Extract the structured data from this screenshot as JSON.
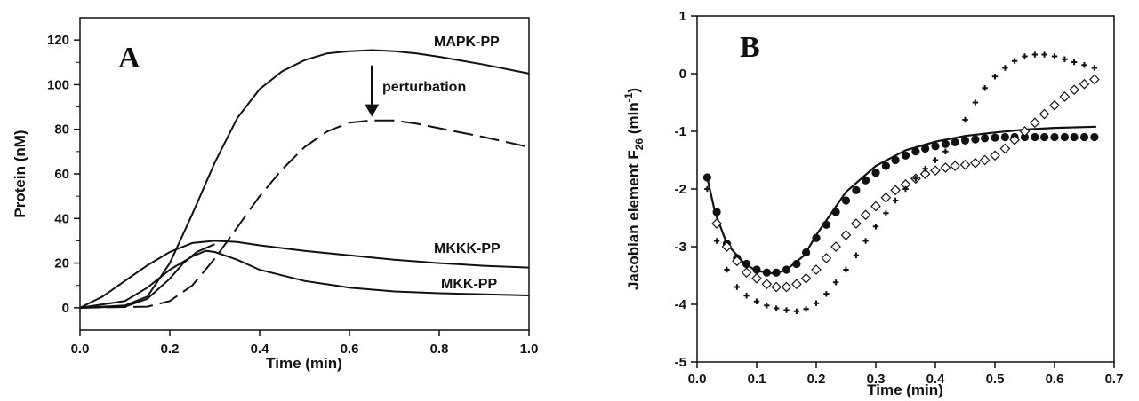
{
  "chart_data": [
    {
      "type": "line",
      "panel_label": "A",
      "xlabel": "Time (min)",
      "ylabel": "Protein (nM)",
      "xlim": [
        0.0,
        1.0
      ],
      "ylim": [
        -10,
        130
      ],
      "x_ticks": [
        "0.0",
        "0.2",
        "0.4",
        "0.6",
        "0.8",
        "1.0"
      ],
      "y_ticks": [
        "0",
        "20",
        "40",
        "60",
        "80",
        "100",
        "120"
      ],
      "series": [
        {
          "name": "MAPK-PP",
          "style": "solid",
          "points": [
            [
              0,
              0
            ],
            [
              0.1,
              1
            ],
            [
              0.15,
              5
            ],
            [
              0.2,
              20
            ],
            [
              0.25,
              42
            ],
            [
              0.3,
              65
            ],
            [
              0.35,
              85
            ],
            [
              0.4,
              98
            ],
            [
              0.45,
              106
            ],
            [
              0.5,
              111
            ],
            [
              0.55,
              114
            ],
            [
              0.6,
              115
            ],
            [
              0.65,
              115.5
            ],
            [
              0.7,
              115
            ],
            [
              0.75,
              114
            ],
            [
              0.8,
              112.5
            ],
            [
              0.9,
              109
            ],
            [
              1.0,
              105
            ]
          ]
        },
        {
          "name": "",
          "style": "dashed",
          "points": [
            [
              0,
              0
            ],
            [
              0.15,
              0.5
            ],
            [
              0.2,
              3
            ],
            [
              0.25,
              10
            ],
            [
              0.3,
              22
            ],
            [
              0.35,
              36
            ],
            [
              0.4,
              50
            ],
            [
              0.45,
              62
            ],
            [
              0.5,
              72
            ],
            [
              0.55,
              79
            ],
            [
              0.6,
              83
            ],
            [
              0.65,
              84
            ],
            [
              0.7,
              84
            ],
            [
              0.75,
              82.5
            ],
            [
              0.8,
              80.5
            ],
            [
              0.9,
              76.5
            ],
            [
              1.0,
              72
            ]
          ]
        },
        {
          "name": "MKKK-PP",
          "style": "solid",
          "points": [
            [
              0,
              0
            ],
            [
              0.05,
              5
            ],
            [
              0.1,
              12
            ],
            [
              0.15,
              19
            ],
            [
              0.2,
              25
            ],
            [
              0.25,
              29
            ],
            [
              0.3,
              30
            ],
            [
              0.35,
              29.5
            ],
            [
              0.4,
              28
            ],
            [
              0.5,
              25.5
            ],
            [
              0.6,
              23.5
            ],
            [
              0.7,
              21.5
            ],
            [
              0.8,
              20
            ],
            [
              0.9,
              18.8
            ],
            [
              1.0,
              18
            ]
          ]
        },
        {
          "name": "MKK-PP",
          "style": "solid",
          "points": [
            [
              0,
              0
            ],
            [
              0.1,
              3
            ],
            [
              0.15,
              9
            ],
            [
              0.2,
              17
            ],
            [
              0.25,
              23
            ],
            [
              0.28,
              25.5
            ],
            [
              0.3,
              25
            ],
            [
              0.35,
              21.5
            ],
            [
              0.4,
              17
            ],
            [
              0.5,
              12
            ],
            [
              0.6,
              9
            ],
            [
              0.7,
              7.3
            ],
            [
              0.8,
              6.5
            ],
            [
              0.9,
              6
            ],
            [
              1.0,
              5.5
            ]
          ]
        },
        {
          "name": "",
          "style": "solid",
          "points": [
            [
              0,
              0
            ],
            [
              0.1,
              0.5
            ],
            [
              0.15,
              4
            ],
            [
              0.2,
              13
            ],
            [
              0.23,
              20
            ],
            [
              0.26,
              25
            ],
            [
              0.3,
              28.5
            ]
          ]
        }
      ],
      "annotations": [
        {
          "text": "perturbation",
          "arrow_from": [
            0.65,
            115
          ],
          "arrow_to": [
            0.65,
            84
          ]
        }
      ]
    },
    {
      "type": "scatter",
      "panel_label": "B",
      "xlabel": "Time (min)",
      "ylabel": "Jacobian element F",
      "ylabel_subscript": "26",
      "ylabel_unit": " (min",
      "ylabel_unit_sup": "-1",
      "ylabel_close": ")",
      "xlim": [
        0.0,
        0.7
      ],
      "ylim": [
        -5,
        1
      ],
      "x_ticks": [
        "0.0",
        "0.1",
        "0.2",
        "0.3",
        "0.4",
        "0.5",
        "0.6",
        "0.7"
      ],
      "y_ticks": [
        "-5",
        "-4",
        "-3",
        "-2",
        "-1",
        "0",
        "1"
      ],
      "series": [
        {
          "marker": "line",
          "style": "solid",
          "points": [
            [
              0.017,
              -1.8
            ],
            [
              0.03,
              -2.4
            ],
            [
              0.05,
              -2.95
            ],
            [
              0.08,
              -3.3
            ],
            [
              0.1,
              -3.42
            ],
            [
              0.13,
              -3.47
            ],
            [
              0.15,
              -3.4
            ],
            [
              0.18,
              -3.15
            ],
            [
              0.2,
              -2.8
            ],
            [
              0.25,
              -2.05
            ],
            [
              0.3,
              -1.6
            ],
            [
              0.35,
              -1.33
            ],
            [
              0.4,
              -1.18
            ],
            [
              0.45,
              -1.08
            ],
            [
              0.5,
              -1.02
            ],
            [
              0.55,
              -0.97
            ],
            [
              0.6,
              -0.94
            ],
            [
              0.67,
              -0.92
            ]
          ]
        },
        {
          "marker": "filled-circle",
          "points": [
            [
              0.017,
              -1.8
            ],
            [
              0.033,
              -2.4
            ],
            [
              0.05,
              -2.95
            ],
            [
              0.067,
              -3.2
            ],
            [
              0.083,
              -3.3
            ],
            [
              0.1,
              -3.4
            ],
            [
              0.117,
              -3.45
            ],
            [
              0.133,
              -3.45
            ],
            [
              0.15,
              -3.4
            ],
            [
              0.167,
              -3.3
            ],
            [
              0.183,
              -3.1
            ],
            [
              0.2,
              -2.85
            ],
            [
              0.217,
              -2.62
            ],
            [
              0.233,
              -2.4
            ],
            [
              0.25,
              -2.2
            ],
            [
              0.267,
              -2.02
            ],
            [
              0.283,
              -1.85
            ],
            [
              0.3,
              -1.72
            ],
            [
              0.317,
              -1.6
            ],
            [
              0.333,
              -1.5
            ],
            [
              0.35,
              -1.42
            ],
            [
              0.367,
              -1.35
            ],
            [
              0.383,
              -1.3
            ],
            [
              0.4,
              -1.26
            ],
            [
              0.417,
              -1.22
            ],
            [
              0.433,
              -1.19
            ],
            [
              0.45,
              -1.16
            ],
            [
              0.467,
              -1.14
            ],
            [
              0.483,
              -1.12
            ],
            [
              0.5,
              -1.11
            ],
            [
              0.517,
              -1.1
            ],
            [
              0.533,
              -1.1
            ],
            [
              0.55,
              -1.1
            ],
            [
              0.567,
              -1.1
            ],
            [
              0.583,
              -1.1
            ],
            [
              0.6,
              -1.1
            ],
            [
              0.617,
              -1.1
            ],
            [
              0.633,
              -1.1
            ],
            [
              0.65,
              -1.1
            ],
            [
              0.667,
              -1.1
            ]
          ]
        },
        {
          "marker": "open-diamond",
          "points": [
            [
              0.033,
              -2.6
            ],
            [
              0.05,
              -3.0
            ],
            [
              0.067,
              -3.25
            ],
            [
              0.083,
              -3.45
            ],
            [
              0.1,
              -3.55
            ],
            [
              0.117,
              -3.65
            ],
            [
              0.133,
              -3.7
            ],
            [
              0.15,
              -3.7
            ],
            [
              0.167,
              -3.65
            ],
            [
              0.183,
              -3.55
            ],
            [
              0.2,
              -3.4
            ],
            [
              0.217,
              -3.2
            ],
            [
              0.233,
              -3.0
            ],
            [
              0.25,
              -2.8
            ],
            [
              0.267,
              -2.6
            ],
            [
              0.283,
              -2.45
            ],
            [
              0.3,
              -2.3
            ],
            [
              0.317,
              -2.15
            ],
            [
              0.333,
              -2.02
            ],
            [
              0.35,
              -1.92
            ],
            [
              0.367,
              -1.82
            ],
            [
              0.383,
              -1.74
            ],
            [
              0.4,
              -1.68
            ],
            [
              0.417,
              -1.63
            ],
            [
              0.433,
              -1.6
            ],
            [
              0.45,
              -1.58
            ],
            [
              0.467,
              -1.55
            ],
            [
              0.483,
              -1.5
            ],
            [
              0.5,
              -1.42
            ],
            [
              0.517,
              -1.3
            ],
            [
              0.533,
              -1.15
            ],
            [
              0.55,
              -1.0
            ],
            [
              0.567,
              -0.85
            ],
            [
              0.583,
              -0.7
            ],
            [
              0.6,
              -0.55
            ],
            [
              0.617,
              -0.4
            ],
            [
              0.633,
              -0.28
            ],
            [
              0.65,
              -0.18
            ],
            [
              0.667,
              -0.1
            ]
          ]
        },
        {
          "marker": "plus",
          "points": [
            [
              0.017,
              -2.0
            ],
            [
              0.033,
              -2.9
            ],
            [
              0.05,
              -3.4
            ],
            [
              0.067,
              -3.7
            ],
            [
              0.083,
              -3.85
            ],
            [
              0.1,
              -3.95
            ],
            [
              0.117,
              -4.02
            ],
            [
              0.133,
              -4.07
            ],
            [
              0.15,
              -4.1
            ],
            [
              0.167,
              -4.12
            ],
            [
              0.183,
              -4.08
            ],
            [
              0.2,
              -3.98
            ],
            [
              0.217,
              -3.82
            ],
            [
              0.233,
              -3.62
            ],
            [
              0.25,
              -3.4
            ],
            [
              0.267,
              -3.15
            ],
            [
              0.283,
              -2.9
            ],
            [
              0.3,
              -2.65
            ],
            [
              0.317,
              -2.42
            ],
            [
              0.333,
              -2.2
            ],
            [
              0.35,
              -2.0
            ],
            [
              0.367,
              -1.82
            ],
            [
              0.383,
              -1.65
            ],
            [
              0.4,
              -1.5
            ],
            [
              0.417,
              -1.35
            ],
            [
              0.433,
              -1.2
            ],
            [
              0.45,
              -0.8
            ],
            [
              0.467,
              -0.5
            ],
            [
              0.483,
              -0.25
            ],
            [
              0.5,
              -0.05
            ],
            [
              0.517,
              0.1
            ],
            [
              0.533,
              0.22
            ],
            [
              0.55,
              0.3
            ],
            [
              0.567,
              0.33
            ],
            [
              0.583,
              0.33
            ],
            [
              0.6,
              0.3
            ],
            [
              0.617,
              0.25
            ],
            [
              0.633,
              0.2
            ],
            [
              0.65,
              0.15
            ],
            [
              0.667,
              0.1
            ]
          ]
        }
      ]
    }
  ]
}
